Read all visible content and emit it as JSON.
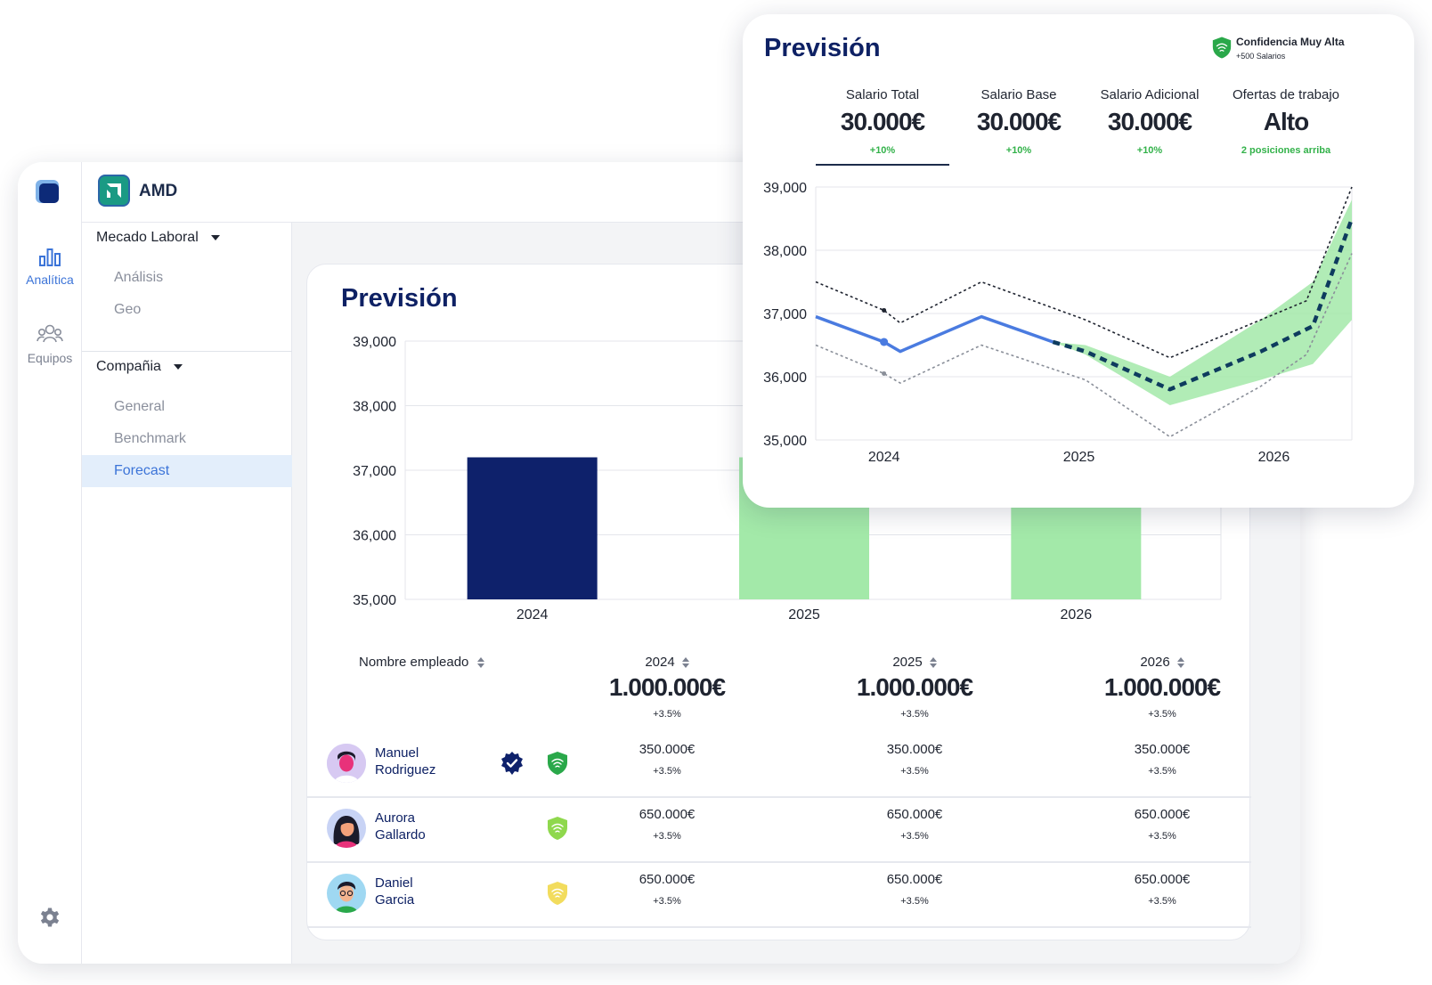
{
  "rail": {
    "items": [
      {
        "label": "Analítica",
        "icon": "bar-chart-icon",
        "active": true
      },
      {
        "label": "Equipos",
        "icon": "team-icon",
        "active": false
      }
    ],
    "settings_icon": "gear-icon"
  },
  "topbar": {
    "brand": "AMD"
  },
  "nav": {
    "sections": [
      {
        "label": "Mecado Laboral",
        "items": [
          "Análisis",
          "Geo"
        ]
      },
      {
        "label": "Compañia",
        "items": [
          "General",
          "Benchmark",
          "Forecast"
        ]
      }
    ],
    "active_item": "Forecast"
  },
  "main": {
    "title": "Previsión",
    "chart_data": {
      "type": "bar",
      "categories": [
        "2024",
        "2025",
        "2026"
      ],
      "values": [
        37200,
        37200,
        37200
      ],
      "colors": [
        "#0e216b",
        "#a3e9a9",
        "#a3e9a9"
      ],
      "ylim": [
        35000,
        39000
      ],
      "yticks": [
        "39,000",
        "38,000",
        "37,000",
        "36,000",
        "35,000"
      ],
      "ytick_values": [
        39000,
        38000,
        37000,
        36000,
        35000
      ],
      "grid": true
    },
    "table": {
      "name_header": "Nombre empleado",
      "years": [
        {
          "year": "2024",
          "total": "1.000.000€",
          "change": "+3.5%"
        },
        {
          "year": "2025",
          "total": "1.000.000€",
          "change": "+3.5%"
        },
        {
          "year": "2026",
          "total": "1.000.000€",
          "change": "+3.5%"
        }
      ],
      "rows": [
        {
          "first": "Manuel",
          "last": "Rodriguez",
          "verified": true,
          "confidence_color": "#2aa84a",
          "values": [
            "350.000€",
            "350.000€",
            "350.000€"
          ],
          "changes": [
            "+3.5%",
            "+3.5%",
            "+3.5%"
          ]
        },
        {
          "first": "Aurora",
          "last": "Gallardo",
          "verified": false,
          "confidence_color": "#8fd84d",
          "values": [
            "650.000€",
            "650.000€",
            "650.000€"
          ],
          "changes": [
            "+3.5%",
            "+3.5%",
            "+3.5%"
          ]
        },
        {
          "first": "Daniel",
          "last": "Garcia",
          "verified": false,
          "confidence_color": "#f2dc5d",
          "values": [
            "650.000€",
            "650.000€",
            "650.000€"
          ],
          "changes": [
            "+3.5%",
            "+3.5%",
            "+3.5%"
          ]
        }
      ]
    }
  },
  "forecast_card": {
    "title": "Previsión",
    "confidence": {
      "label": "Confidencia Muy Alta",
      "sub": "+500 Salarios"
    },
    "kpis": [
      {
        "label": "Salario Total",
        "value": "30.000€",
        "change": "+10%",
        "selected": true
      },
      {
        "label": "Salario Base",
        "value": "30.000€",
        "change": "+10%"
      },
      {
        "label": "Salario Adicional",
        "value": "30.000€",
        "change": "+10%"
      },
      {
        "label": "Ofertas de trabajo",
        "value": "Alto",
        "change": "2 posiciones arriba"
      }
    ],
    "chart_data": {
      "type": "line",
      "x_tick_labels": [
        "2024",
        "2025",
        "2026"
      ],
      "x_tick_positions": [
        0.5,
        3.5,
        6.5
      ],
      "x_range": [
        -0.55,
        7.7
      ],
      "ylim": [
        35000,
        39000
      ],
      "yticks": [
        "39,000",
        "38,000",
        "37,000",
        "36,000",
        "35,000"
      ],
      "ytick_values": [
        39000,
        38000,
        37000,
        36000,
        35000
      ],
      "grid": true,
      "series": [
        {
          "style": "solid",
          "color": "#4a7be0",
          "x": [
            -0.55,
            0.5,
            0.75,
            2.0,
            3.1
          ],
          "y": [
            36950,
            36550,
            36400,
            36950,
            36550
          ]
        },
        {
          "style": "dashed",
          "color": "#0e3b5e",
          "x": [
            3.1,
            3.6,
            4.9,
            6.3,
            7.1,
            7.7
          ],
          "y": [
            36550,
            36400,
            35800,
            36400,
            36800,
            38500
          ]
        },
        {
          "style": "dotted",
          "color": "#1f2430",
          "x": [
            -0.55,
            0.5,
            0.75,
            2.0,
            3.6,
            4.9,
            6.3,
            7.0,
            7.7
          ],
          "y": [
            37500,
            37050,
            36850,
            37500,
            36900,
            36300,
            36900,
            37200,
            39000
          ]
        },
        {
          "style": "dotted",
          "color": "#8a8f99",
          "x": [
            -0.55,
            0.5,
            0.75,
            2.0,
            3.6,
            4.9,
            6.3,
            7.0,
            7.7
          ],
          "y": [
            36500,
            36050,
            35900,
            36500,
            35950,
            35050,
            35850,
            36350,
            37950
          ]
        }
      ],
      "band": {
        "color": "#a3e9a9",
        "x": [
          3.1,
          3.6,
          4.9,
          6.3,
          7.1,
          7.7
        ],
        "upper": [
          36550,
          36500,
          36000,
          36900,
          37500,
          38800
        ],
        "lower": [
          36550,
          36350,
          35550,
          35950,
          36200,
          36900
        ]
      }
    }
  }
}
